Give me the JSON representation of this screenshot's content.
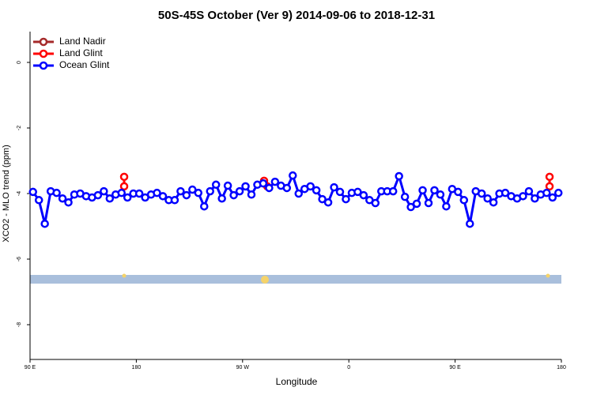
{
  "chart_data": {
    "type": "line",
    "title": "50S-45S October (Ver 9)   2014-09-06 to 2018-12-31",
    "x_label": "Longitude",
    "y_label": "XCO2 - MLO trend (ppm)",
    "xlim": [
      90,
      540
    ],
    "ylim": [
      -9.06,
      0.94
    ],
    "xticks": [
      {
        "value": 90,
        "label": "90 E"
      },
      180,
      {
        "value": 270,
        "label": "90 W"
      },
      {
        "value": 360,
        "label": "0"
      },
      {
        "value": 450,
        "label": "90 E"
      },
      {
        "value": 540,
        "label": "180"
      }
    ],
    "yticks": [
      0,
      -2,
      -4,
      -6,
      -8
    ],
    "legend": "top-left",
    "series": [
      {
        "name": "Land Nadir",
        "color": "#a52a2a",
        "x": [],
        "values": []
      },
      {
        "name": "Land Glint",
        "color": "#ff0000",
        "x": [
          169.7,
          169.7,
          169.7,
          288.2,
          290.9,
          290.9,
          530,
          530
        ],
        "values": [
          -3.49,
          -3.78,
          null,
          -3.61,
          -3.78,
          null,
          -3.49,
          -3.78
        ]
      },
      {
        "name": "Ocean Glint",
        "color": "#0000ff",
        "x": [
          92.5,
          97.5,
          102.5,
          107.5,
          112.5,
          117.5,
          122.5,
          127.5,
          132.5,
          137.5,
          142.5,
          147.5,
          152.5,
          157.5,
          162.5,
          167.5,
          172.5,
          177.5,
          182.5,
          187.5,
          192.5,
          197.5,
          202.5,
          207.5,
          212.5,
          217.5,
          222.5,
          227.5,
          232.5,
          237.5,
          242.5,
          247.5,
          252.5,
          257.5,
          262.5,
          267.5,
          272.5,
          277.5,
          282.5,
          287.5,
          292.5,
          297.5,
          302.5,
          307.5,
          312.5,
          317.5,
          322.5,
          327.5,
          332.5,
          337.5,
          342.5,
          347.5,
          352.5,
          357.5,
          362.5,
          367.5,
          372.5,
          377.5,
          382.5,
          387.5,
          392.5,
          397.5,
          402.5,
          407.5,
          412.5,
          417.5,
          422.5,
          427.5,
          432.5,
          437.5,
          442.5,
          447.5,
          452.5,
          457.5,
          462.5,
          467.5,
          472.5,
          477.5,
          482.5,
          487.5,
          492.5,
          497.5,
          502.5,
          507.5,
          512.5,
          517.5,
          522.5,
          527.5,
          532.5,
          537.5
        ],
        "values": [
          -3.95,
          -4.2,
          -4.92,
          -3.93,
          -3.98,
          -4.15,
          -4.27,
          -4.03,
          -4.0,
          -4.08,
          -4.12,
          -4.05,
          -3.93,
          -4.15,
          -4.03,
          -3.98,
          -4.12,
          -4.0,
          -4.0,
          -4.12,
          -4.03,
          -3.98,
          -4.08,
          -4.2,
          -4.2,
          -3.93,
          -4.05,
          -3.88,
          -3.98,
          -4.39,
          -3.93,
          -3.73,
          -4.15,
          -3.76,
          -4.05,
          -3.93,
          -3.78,
          -4.03,
          -3.73,
          -3.69,
          -3.83,
          -3.64,
          -3.76,
          -3.83,
          -3.45,
          -4.0,
          -3.86,
          -3.78,
          -3.9,
          -4.17,
          -4.27,
          -3.81,
          -3.95,
          -4.17,
          -3.98,
          -3.95,
          -4.05,
          -4.2,
          -4.29,
          -3.93,
          -3.93,
          -3.93,
          -3.47,
          -4.1,
          -4.41,
          -4.31,
          -3.9,
          -4.29,
          -3.9,
          -4.03,
          -4.39,
          -3.86,
          -3.95,
          -4.2,
          -4.92,
          -3.93,
          -4.0,
          -4.15,
          -4.27,
          -4.0,
          -3.98,
          -4.08,
          -4.15,
          -4.08,
          -3.93,
          -4.15,
          -4.03,
          -3.98,
          -4.12,
          -3.98
        ]
      }
    ]
  }
}
